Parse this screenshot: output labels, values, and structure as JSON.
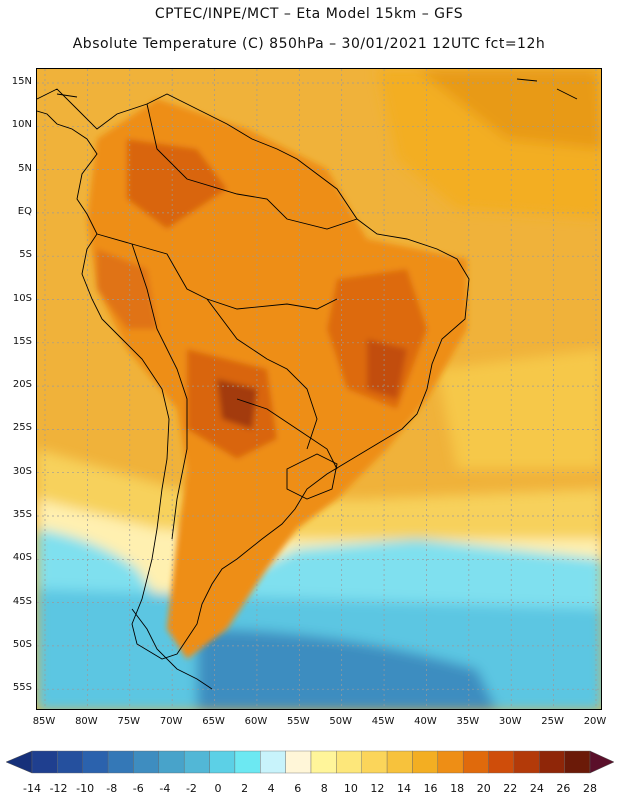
{
  "header": {
    "line1": "CPTEC/INPE/MCT –  Eta Model 15km – GFS",
    "line2": "Absolute Temperature (C) 850hPa – 30/01/2021 12UTC fct=12h"
  },
  "axes": {
    "lat_labels": [
      "15N",
      "10N",
      "5N",
      "EQ",
      "5S",
      "10S",
      "15S",
      "20S",
      "25S",
      "30S",
      "35S",
      "40S",
      "45S",
      "50S",
      "55S"
    ],
    "lon_labels": [
      "85W",
      "80W",
      "75W",
      "70W",
      "65W",
      "60W",
      "55W",
      "50W",
      "45W",
      "40W",
      "35W",
      "30W",
      "25W",
      "20W"
    ]
  },
  "colorbar": {
    "labels": [
      "-14",
      "-12",
      "-10",
      "-8",
      "-6",
      "-4",
      "-2",
      "0",
      "2",
      "4",
      "6",
      "8",
      "10",
      "12",
      "14",
      "16",
      "18",
      "20",
      "22",
      "24",
      "26",
      "28"
    ],
    "colors": [
      "#1f3f8f",
      "#25509e",
      "#2b62ad",
      "#3478b7",
      "#3e8dc0",
      "#48a3ca",
      "#52b7d6",
      "#5cd0e6",
      "#6ce8f2",
      "#c8f3fb",
      "#fff6d8",
      "#fff59a",
      "#fde77a",
      "#fbd55a",
      "#f7c23c",
      "#f3ae22",
      "#ee8e15",
      "#e06a0c",
      "#cf4d0a",
      "#b33a09",
      "#8f2608",
      "#6b1a08"
    ],
    "under_color": "#16307a",
    "over_color": "#5a0f2a"
  },
  "map": {
    "background_color": "#f0b23a",
    "land_outline_color": "#000000",
    "grid_color": "#b8b8b8"
  }
}
